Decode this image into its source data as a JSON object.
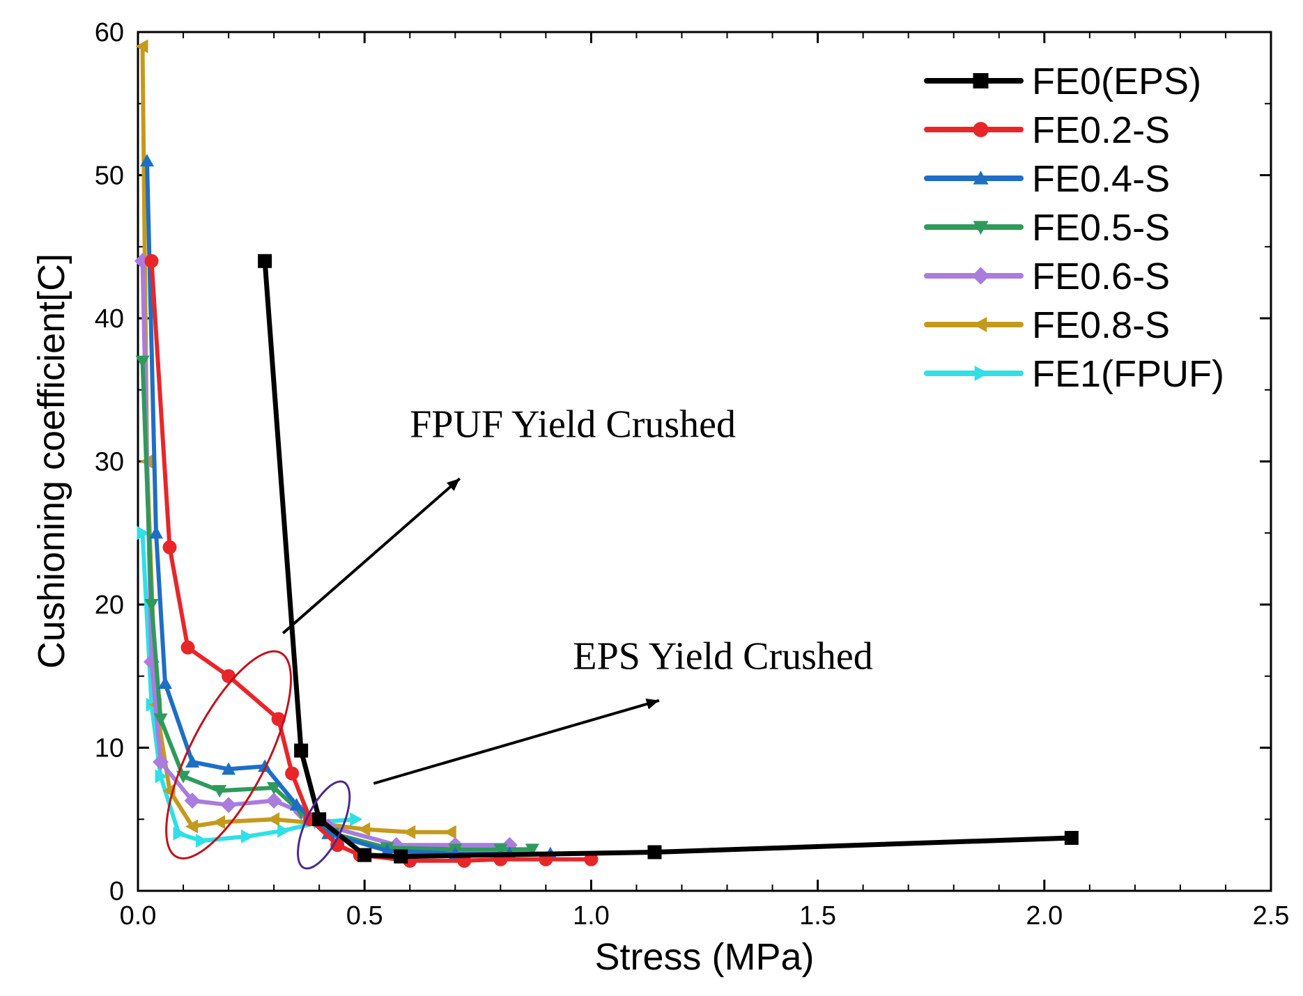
{
  "chart_data": {
    "type": "line",
    "title": "",
    "xlabel": "Stress (MPa)",
    "ylabel": "Cushioning coefficient[C]",
    "xlim": [
      0,
      2.5
    ],
    "ylim": [
      0,
      60
    ],
    "xticks": [
      "0.0",
      "0.5",
      "1.0",
      "1.5",
      "2.0",
      "2.5"
    ],
    "xtick_values": [
      0,
      0.5,
      1.0,
      1.5,
      2.0,
      2.5
    ],
    "yticks": [
      "0",
      "10",
      "20",
      "30",
      "40",
      "50",
      "60"
    ],
    "ytick_values": [
      0,
      10,
      20,
      30,
      40,
      50,
      60
    ],
    "legend_position": "top-right",
    "series": [
      {
        "name": "FE0(EPS)",
        "color": "#000000",
        "marker": "square",
        "x": [
          0.28,
          0.36,
          0.4,
          0.5,
          0.58,
          1.14,
          2.06
        ],
        "y": [
          44,
          9.8,
          5,
          2.5,
          2.4,
          2.7,
          3.7
        ]
      },
      {
        "name": "FE0.2-S",
        "color": "#e8262a",
        "marker": "circle",
        "x": [
          0.03,
          0.07,
          0.11,
          0.2,
          0.31,
          0.34,
          0.38,
          0.44,
          0.49,
          0.6,
          0.72,
          0.8,
          0.9,
          1.0
        ],
        "y": [
          44,
          24,
          17,
          15,
          12,
          8.2,
          5,
          3.2,
          2.5,
          2.1,
          2.1,
          2.2,
          2.2,
          2.2
        ]
      },
      {
        "name": "FE0.4-S",
        "color": "#1e6ec4",
        "marker": "triangle-up",
        "x": [
          0.02,
          0.04,
          0.06,
          0.12,
          0.2,
          0.28,
          0.35,
          0.42,
          0.55,
          0.7,
          0.82,
          0.91
        ],
        "y": [
          51,
          25,
          14.5,
          9,
          8.5,
          8.7,
          6,
          4,
          2.8,
          2.6,
          2.6,
          2.6
        ]
      },
      {
        "name": "FE0.5-S",
        "color": "#2e9a5c",
        "marker": "triangle-down",
        "x": [
          0.01,
          0.03,
          0.05,
          0.1,
          0.18,
          0.3,
          0.36,
          0.43,
          0.55,
          0.7,
          0.8,
          0.87
        ],
        "y": [
          37,
          20,
          12,
          8,
          7,
          7.2,
          5.5,
          4,
          3,
          2.9,
          2.9,
          2.9
        ]
      },
      {
        "name": "FE0.6-S",
        "color": "#a97cde",
        "marker": "diamond",
        "x": [
          0.01,
          0.03,
          0.05,
          0.12,
          0.2,
          0.3,
          0.36,
          0.42,
          0.57,
          0.7,
          0.82
        ],
        "y": [
          44,
          16,
          9,
          6.3,
          6,
          6.3,
          5.5,
          4.5,
          3.2,
          3.2,
          3.2
        ]
      },
      {
        "name": "FE0.8-S",
        "color": "#c49a1d",
        "marker": "triangle-left",
        "x": [
          0.01,
          0.02,
          0.04,
          0.07,
          0.12,
          0.18,
          0.3,
          0.4,
          0.5,
          0.6,
          0.69
        ],
        "y": [
          59,
          30,
          13,
          7,
          4.5,
          4.8,
          5,
          4.7,
          4.3,
          4.1,
          4.1
        ]
      },
      {
        "name": "FE1(FPUF)",
        "color": "#2fe0e6",
        "marker": "triangle-right",
        "x": [
          0.01,
          0.03,
          0.05,
          0.09,
          0.14,
          0.24,
          0.32,
          0.4,
          0.48
        ],
        "y": [
          25,
          13,
          8,
          4,
          3.5,
          3.8,
          4.2,
          4.8,
          5
        ]
      }
    ],
    "annotations": [
      {
        "text": "FPUF Yield Crushed",
        "arrow_from": [
          0.32,
          18
        ],
        "arrow_to": [
          0.71,
          28.8
        ]
      },
      {
        "text": "EPS Yield Crushed",
        "arrow_from": [
          0.52,
          7.5
        ],
        "arrow_to": [
          1.15,
          13.3
        ]
      }
    ],
    "highlight_ellipses": [
      {
        "color": "#c0121a",
        "center": [
          0.2,
          9.5
        ],
        "semi_x": 0.085,
        "semi_y": 8,
        "rotate": 27
      },
      {
        "color": "#4a2a90",
        "center": [
          0.41,
          4.6
        ],
        "semi_x": 0.04,
        "semi_y": 3.3,
        "rotate": 25
      }
    ]
  }
}
